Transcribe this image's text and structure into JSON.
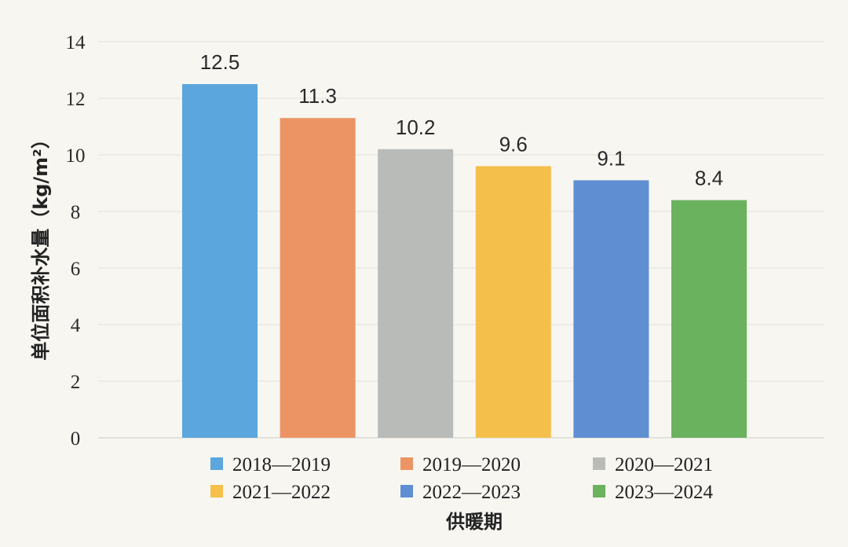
{
  "chart_data": {
    "type": "bar",
    "title": "",
    "xlabel": "供暖期",
    "ylabel": "单位面积补水量（kg/m²）",
    "ylim": [
      0,
      14
    ],
    "yticks": [
      "0",
      "2",
      "4",
      "6",
      "8",
      "10",
      "12",
      "14"
    ],
    "categories": [
      "2018—2019",
      "2019—2020",
      "2020—2021",
      "2021—2022",
      "2022—2023",
      "2023—2024"
    ],
    "values": [
      12.5,
      11.3,
      10.2,
      9.6,
      9.1,
      8.4
    ],
    "value_labels": [
      "12.5",
      "11.3",
      "10.2",
      "9.6",
      "9.1",
      "8.4"
    ],
    "colors": [
      "#5ba6dd",
      "#ec9463",
      "#b9bbb8",
      "#f5bf4c",
      "#5f8fd2",
      "#6bb25f"
    ],
    "legend": {
      "placement": "bottom",
      "entries": [
        "2018—2019",
        "2019—2020",
        "2020—2021",
        "2021—2022",
        "2022—2023",
        "2023—2024"
      ]
    },
    "grid": true
  }
}
